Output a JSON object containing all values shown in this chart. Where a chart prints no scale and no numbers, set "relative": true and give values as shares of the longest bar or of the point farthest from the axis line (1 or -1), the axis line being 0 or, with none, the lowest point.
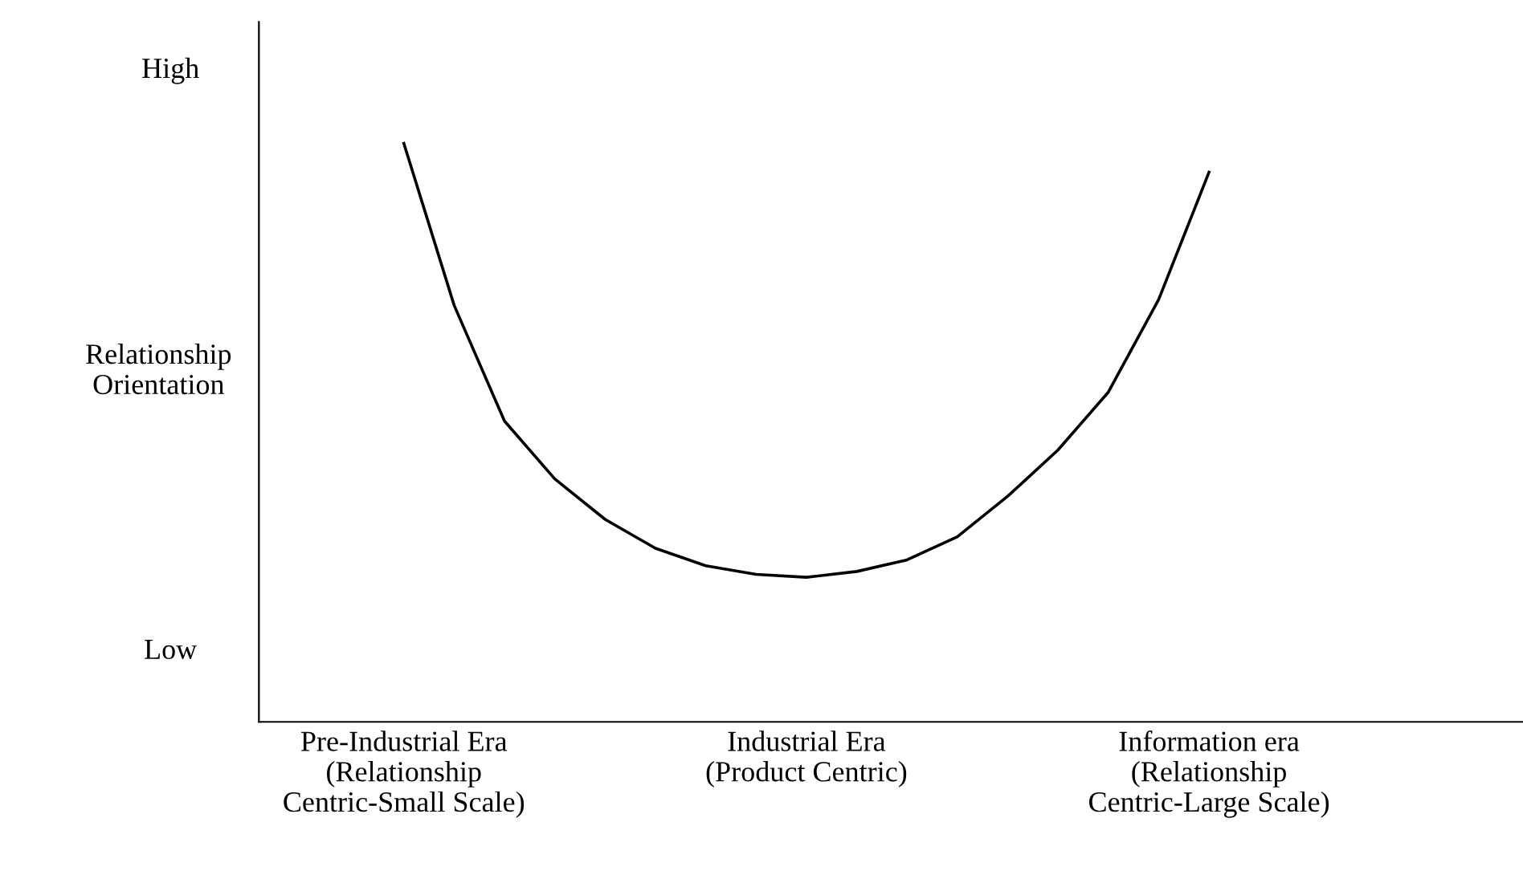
{
  "chart_data": {
    "type": "line",
    "relative": true,
    "ylabel": "Relationship\nOrientation",
    "annotations": [
      "High",
      "Low"
    ],
    "categories": [
      "Pre-Industrial Era\n(Relationship\nCentric-Small Scale)",
      null,
      null,
      null,
      null,
      null,
      null,
      null,
      "Industrial Era\n(Product Centric)",
      null,
      null,
      null,
      null,
      null,
      null,
      null,
      "Information era\n(Relationship\nCentric-Large Scale)"
    ],
    "series": [
      {
        "color": "#000000",
        "values": [
          1.0,
          0.72,
          0.52,
          0.42,
          0.35,
          0.3,
          0.27,
          0.255,
          0.25,
          0.26,
          0.28,
          0.32,
          0.39,
          0.47,
          0.57,
          0.73,
          0.95
        ]
      }
    ],
    "grid": false,
    "marker": "none",
    "line_style": "solid"
  }
}
